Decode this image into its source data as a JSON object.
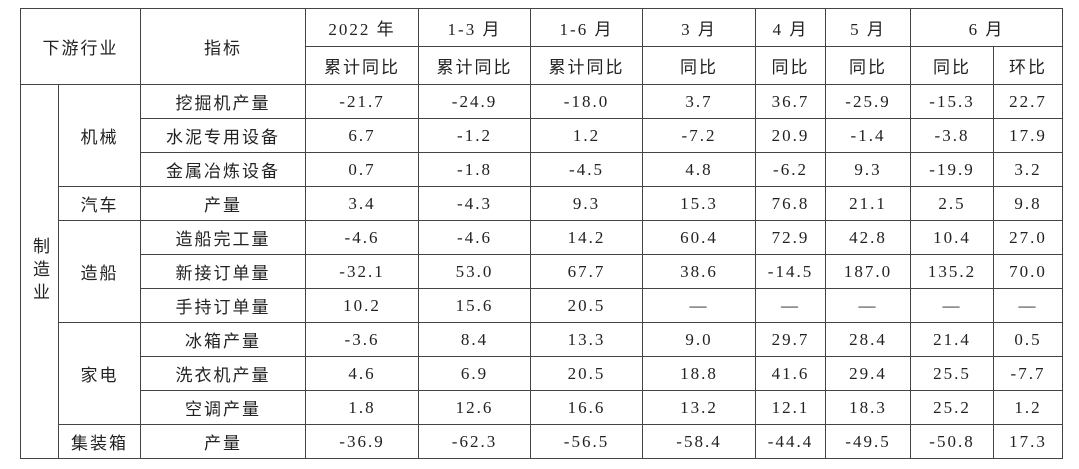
{
  "header": {
    "row1": [
      "下游行业",
      "指标",
      "2022 年",
      "1-3 月",
      "1-6 月",
      "3 月",
      "4 月",
      "5 月",
      "6 月"
    ],
    "row2": [
      "累计同比",
      "累计同比",
      "累计同比",
      "同比",
      "同比",
      "同比",
      "同比",
      "环比"
    ]
  },
  "table": {
    "sector": "制造业",
    "groups": [
      {
        "name": "机械",
        "rows": [
          {
            "indicator": "挖掘机产量",
            "values": [
              "-21.7",
              "-24.9",
              "-18.0",
              "3.7",
              "36.7",
              "-25.9",
              "-15.3",
              "22.7"
            ]
          },
          {
            "indicator": "水泥专用设备",
            "values": [
              "6.7",
              "-1.2",
              "1.2",
              "-7.2",
              "20.9",
              "-1.4",
              "-3.8",
              "17.9"
            ]
          },
          {
            "indicator": "金属冶炼设备",
            "values": [
              "0.7",
              "-1.8",
              "-4.5",
              "4.8",
              "-6.2",
              "9.3",
              "-19.9",
              "3.2"
            ]
          }
        ]
      },
      {
        "name": "汽车",
        "rows": [
          {
            "indicator": "产量",
            "values": [
              "3.4",
              "-4.3",
              "9.3",
              "15.3",
              "76.8",
              "21.1",
              "2.5",
              "9.8"
            ]
          }
        ]
      },
      {
        "name": "造船",
        "rows": [
          {
            "indicator": "造船完工量",
            "values": [
              "-4.6",
              "-4.6",
              "14.2",
              "60.4",
              "72.9",
              "42.8",
              "10.4",
              "27.0"
            ]
          },
          {
            "indicator": "新接订单量",
            "values": [
              "-32.1",
              "53.0",
              "67.7",
              "38.6",
              "-14.5",
              "187.0",
              "135.2",
              "70.0"
            ]
          },
          {
            "indicator": "手持订单量",
            "values": [
              "10.2",
              "15.6",
              "20.5",
              "—",
              "—",
              "—",
              "—",
              "—"
            ]
          }
        ]
      },
      {
        "name": "家电",
        "rows": [
          {
            "indicator": "冰箱产量",
            "values": [
              "-3.6",
              "8.4",
              "13.3",
              "9.0",
              "29.7",
              "28.4",
              "21.4",
              "0.5"
            ]
          },
          {
            "indicator": "洗衣机产量",
            "values": [
              "4.6",
              "6.9",
              "20.5",
              "18.8",
              "41.6",
              "29.4",
              "25.5",
              "-7.7"
            ]
          },
          {
            "indicator": "空调产量",
            "values": [
              "1.8",
              "12.6",
              "16.6",
              "13.2",
              "12.1",
              "18.3",
              "25.2",
              "1.2"
            ]
          }
        ]
      },
      {
        "name": "集装箱",
        "rows": [
          {
            "indicator": "产量",
            "values": [
              "-36.9",
              "-62.3",
              "-56.5",
              "-58.4",
              "-44.4",
              "-49.5",
              "-50.8",
              "17.3"
            ]
          }
        ]
      }
    ]
  }
}
